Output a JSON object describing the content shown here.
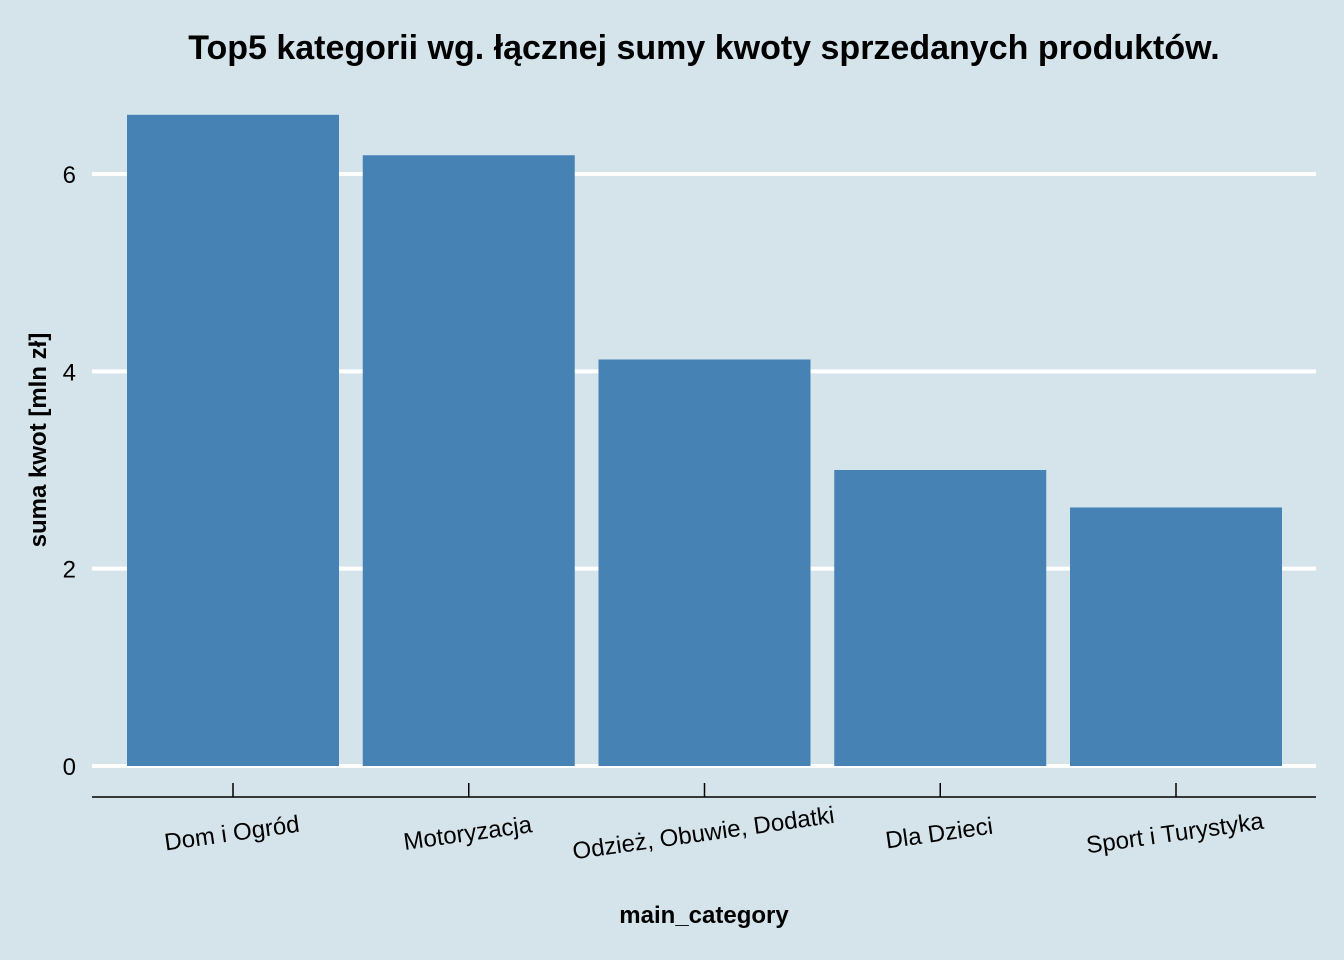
{
  "chart_data": {
    "type": "bar",
    "title": "Top5 kategorii wg. łącznej sumy kwoty sprzedanych produktów.",
    "xlabel": "main_category",
    "ylabel": "suma kwot [mln zł]",
    "categories": [
      "Dom i Ogród",
      "Motoryzacja",
      "Odzież, Obuwie, Dodatki",
      "Dla Dzieci",
      "Sport i Turystyka"
    ],
    "values": [
      6.6,
      6.19,
      4.12,
      3.0,
      2.62
    ],
    "ylim": [
      0,
      6.8
    ],
    "yticks": [
      "0",
      "2",
      "4",
      "6"
    ],
    "grid": true,
    "bar_color": "#4682b4",
    "background_color": "#d5e4eb",
    "grid_color": "#ffffff"
  }
}
